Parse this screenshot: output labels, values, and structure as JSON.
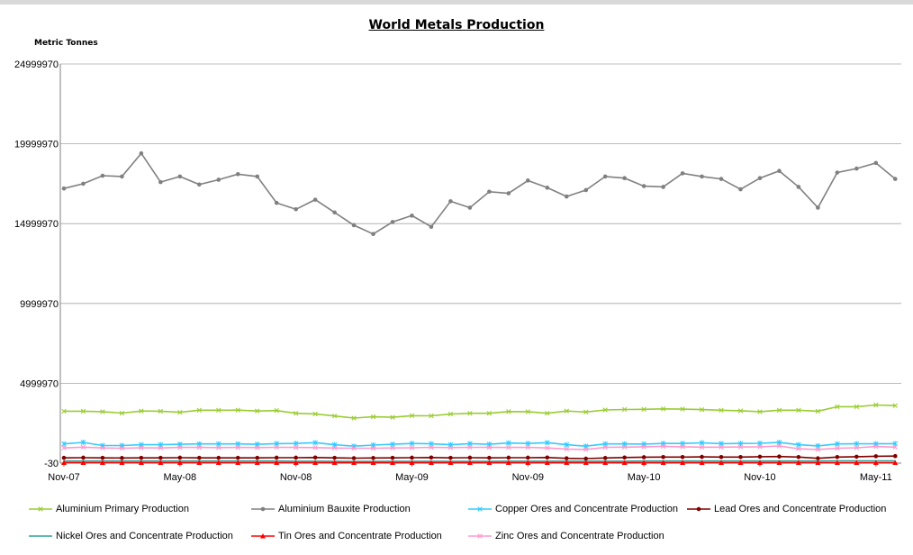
{
  "chart_data": {
    "type": "line",
    "title": "World Metals Production",
    "ylabel": "Metric Tonnes",
    "xlabel": "",
    "ylim": [
      -30,
      24999970
    ],
    "yticks": [
      24999970,
      19999970,
      14999970,
      9999970,
      4999970,
      -30
    ],
    "ytick_labels": [
      "24999970",
      "19999970",
      "14999970",
      "9999970",
      "4999970",
      "-30"
    ],
    "xtick_labels": [
      "Nov-07",
      "May-08",
      "Nov-08",
      "May-09",
      "Nov-09",
      "May-10",
      "Nov-10",
      "May-11"
    ],
    "x_count": 44,
    "grid": "horizontal",
    "legend_position": "bottom",
    "series": [
      {
        "name": "Aluminium Primary Production",
        "color": "#9acd32",
        "marker": "x",
        "values": [
          3250000,
          3250000,
          3220000,
          3130000,
          3260000,
          3250000,
          3180000,
          3310000,
          3310000,
          3320000,
          3260000,
          3290000,
          3120000,
          3080000,
          2950000,
          2820000,
          2900000,
          2870000,
          2970000,
          2960000,
          3070000,
          3120000,
          3120000,
          3230000,
          3220000,
          3120000,
          3260000,
          3200000,
          3330000,
          3360000,
          3370000,
          3400000,
          3380000,
          3350000,
          3310000,
          3280000,
          3220000,
          3310000,
          3310000,
          3250000,
          3530000,
          3530000,
          3640000,
          3600000
        ]
      },
      {
        "name": "Aluminium Bauxite Production",
        "color": "#808080",
        "marker": "circle",
        "values": [
          17200000,
          17500000,
          18000000,
          17950000,
          19400000,
          17600000,
          17950000,
          17450000,
          17750000,
          18100000,
          17950000,
          16300000,
          15900000,
          16500000,
          15700000,
          14900000,
          14350000,
          15100000,
          15500000,
          14800000,
          16400000,
          16000000,
          17000000,
          16900000,
          17700000,
          17250000,
          16700000,
          17100000,
          17950000,
          17850000,
          17350000,
          17300000,
          18150000,
          17950000,
          17800000,
          17150000,
          17850000,
          18300000,
          17300000,
          16000000,
          18200000,
          18450000,
          18800000,
          17800000
        ]
      },
      {
        "name": "Copper Ores and Concentrate Production",
        "color": "#33ccff",
        "marker": "star",
        "values": [
          1200000,
          1300000,
          1100000,
          1100000,
          1150000,
          1150000,
          1180000,
          1200000,
          1200000,
          1200000,
          1180000,
          1220000,
          1230000,
          1280000,
          1150000,
          1060000,
          1130000,
          1180000,
          1230000,
          1210000,
          1150000,
          1220000,
          1180000,
          1260000,
          1230000,
          1280000,
          1150000,
          1060000,
          1200000,
          1200000,
          1190000,
          1230000,
          1230000,
          1270000,
          1220000,
          1230000,
          1240000,
          1290000,
          1150000,
          1080000,
          1200000,
          1210000,
          1210000,
          1220000
        ]
      },
      {
        "name": "Lead Ores and Concentrate Production",
        "color": "#800000",
        "marker": "circle",
        "values": [
          330000,
          340000,
          330000,
          320000,
          330000,
          330000,
          340000,
          330000,
          330000,
          330000,
          330000,
          340000,
          340000,
          350000,
          330000,
          310000,
          320000,
          330000,
          340000,
          350000,
          330000,
          340000,
          330000,
          340000,
          340000,
          350000,
          300000,
          280000,
          320000,
          350000,
          370000,
          380000,
          380000,
          390000,
          380000,
          380000,
          400000,
          410000,
          380000,
          300000,
          380000,
          400000,
          430000,
          440000
        ]
      },
      {
        "name": "Nickel Ores and Concentrate Production",
        "color": "#2aa198",
        "marker": "none",
        "values": [
          130000,
          130000,
          130000,
          130000,
          130000,
          130000,
          130000,
          130000,
          130000,
          130000,
          130000,
          130000,
          120000,
          120000,
          110000,
          100000,
          100000,
          110000,
          110000,
          110000,
          110000,
          110000,
          110000,
          120000,
          120000,
          120000,
          120000,
          120000,
          120000,
          120000,
          130000,
          130000,
          130000,
          130000,
          130000,
          130000,
          130000,
          130000,
          130000,
          130000,
          140000,
          140000,
          140000,
          140000
        ]
      },
      {
        "name": "Tin Ores and Concentrate Production",
        "color": "#ff0000",
        "marker": "triangle",
        "values": [
          30000,
          30000,
          30000,
          30000,
          30000,
          30000,
          30000,
          30000,
          30000,
          30000,
          30000,
          30000,
          30000,
          30000,
          25000,
          25000,
          25000,
          25000,
          25000,
          25000,
          25000,
          25000,
          25000,
          25000,
          25000,
          25000,
          25000,
          25000,
          25000,
          25000,
          25000,
          25000,
          25000,
          25000,
          25000,
          25000,
          25000,
          25000,
          25000,
          25000,
          25000,
          25000,
          25000,
          25000
        ]
      },
      {
        "name": "Zinc Ores and Concentrate Production",
        "color": "#ff99cc",
        "marker": "x",
        "values": [
          950000,
          1000000,
          950000,
          930000,
          960000,
          950000,
          980000,
          980000,
          970000,
          980000,
          970000,
          990000,
          980000,
          970000,
          940000,
          930000,
          930000,
          950000,
          960000,
          990000,
          970000,
          990000,
          980000,
          980000,
          990000,
          950000,
          880000,
          850000,
          990000,
          1000000,
          1020000,
          1050000,
          1020000,
          1000000,
          1000000,
          1010000,
          1020000,
          1070000,
          900000,
          850000,
          930000,
          960000,
          1040000,
          1000000
        ]
      }
    ]
  }
}
